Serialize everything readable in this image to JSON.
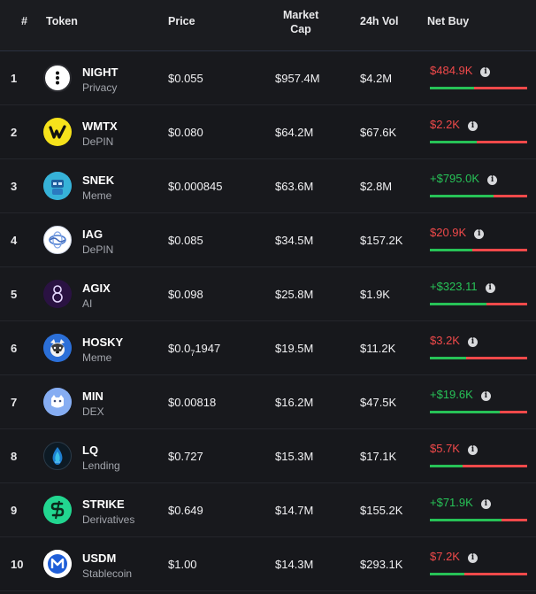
{
  "header": {
    "rank": "#",
    "token": "Token",
    "price": "Price",
    "market_cap_line1": "Market",
    "market_cap_line2": "Cap",
    "volume": "24h Vol",
    "net_buy": "Net Buy"
  },
  "colors": {
    "positive": "#27c257",
    "negative": "#f0494a",
    "background": "#17181c"
  },
  "rows": [
    {
      "rank": "1",
      "symbol": "NIGHT",
      "category": "Privacy",
      "price": "$0.055",
      "market_cap": "$957.4M",
      "volume": "$4.2M",
      "net_buy": "$484.9K",
      "sign": "neg",
      "buy_ratio": 0.45,
      "icon": "night-logo-icon"
    },
    {
      "rank": "2",
      "symbol": "WMTX",
      "category": "DePIN",
      "price": "$0.080",
      "market_cap": "$64.2M",
      "volume": "$67.6K",
      "net_buy": "$2.2K",
      "sign": "neg",
      "buy_ratio": 0.48,
      "icon": "wmtx-logo-icon"
    },
    {
      "rank": "3",
      "symbol": "SNEK",
      "category": "Meme",
      "price": "$0.000845",
      "market_cap": "$63.6M",
      "volume": "$2.8M",
      "net_buy": "+$795.0K",
      "sign": "pos",
      "buy_ratio": 0.65,
      "icon": "snek-logo-icon"
    },
    {
      "rank": "4",
      "symbol": "IAG",
      "category": "DePIN",
      "price": "$0.085",
      "market_cap": "$34.5M",
      "volume": "$157.2K",
      "net_buy": "$20.9K",
      "sign": "neg",
      "buy_ratio": 0.44,
      "icon": "iag-logo-icon"
    },
    {
      "rank": "5",
      "symbol": "AGIX",
      "category": "AI",
      "price": "$0.098",
      "market_cap": "$25.8M",
      "volume": "$1.9K",
      "net_buy": "+$323.11",
      "sign": "pos",
      "buy_ratio": 0.58,
      "icon": "agix-logo-icon"
    },
    {
      "rank": "6",
      "symbol": "HOSKY",
      "category": "Meme",
      "price_prefix": "$0.0",
      "price_sub": "7",
      "price_suffix": "1947",
      "market_cap": "$19.5M",
      "volume": "$11.2K",
      "net_buy": "$3.2K",
      "sign": "neg",
      "buy_ratio": 0.37,
      "icon": "hosky-logo-icon"
    },
    {
      "rank": "7",
      "symbol": "MIN",
      "category": "DEX",
      "price": "$0.00818",
      "market_cap": "$16.2M",
      "volume": "$47.5K",
      "net_buy": "+$19.6K",
      "sign": "pos",
      "buy_ratio": 0.72,
      "icon": "min-logo-icon"
    },
    {
      "rank": "8",
      "symbol": "LQ",
      "category": "Lending",
      "price": "$0.727",
      "market_cap": "$15.3M",
      "volume": "$17.1K",
      "net_buy": "$5.7K",
      "sign": "neg",
      "buy_ratio": 0.34,
      "icon": "lq-logo-icon"
    },
    {
      "rank": "9",
      "symbol": "STRIKE",
      "category": "Derivatives",
      "price": "$0.649",
      "market_cap": "$14.7M",
      "volume": "$155.2K",
      "net_buy": "+$71.9K",
      "sign": "pos",
      "buy_ratio": 0.74,
      "icon": "strike-logo-icon"
    },
    {
      "rank": "10",
      "symbol": "USDM",
      "category": "Stablecoin",
      "price": "$1.00",
      "market_cap": "$14.3M",
      "volume": "$293.1K",
      "net_buy": "$7.2K",
      "sign": "neg",
      "buy_ratio": 0.35,
      "icon": "usdm-logo-icon"
    }
  ],
  "info_glyph": "i"
}
